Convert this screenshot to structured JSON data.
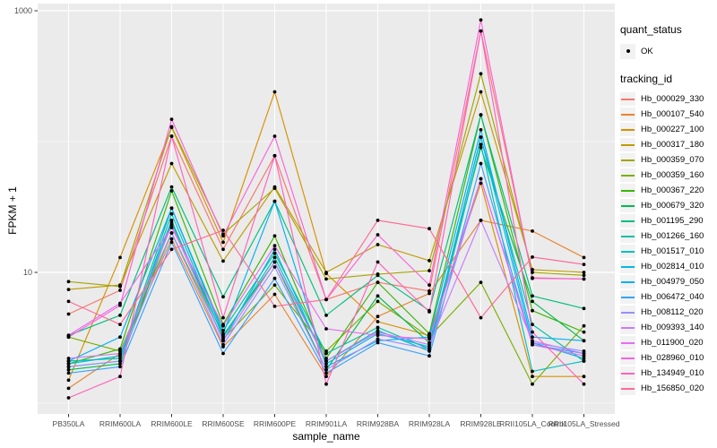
{
  "chart_data": {
    "type": "line",
    "title": "",
    "xlabel": "sample_name",
    "ylabel": "FPKM + 1",
    "y_scale": "log10",
    "y_axis_tick_labels": [
      {
        "value": 10,
        "label": "10"
      },
      {
        "value": 1000,
        "label": "1000"
      }
    ],
    "y_major_gridlines": [
      10,
      1000
    ],
    "y_minor_gridlines": [
      1,
      100
    ],
    "ylim": [
      0.8,
      1100
    ],
    "grid": true,
    "legend_position": "right",
    "panel_background": "#ebebeb",
    "gridline_color": "#ffffff",
    "axis_text_color": "#4d4d4d",
    "tick_mark_color": "#333333",
    "point_color": "#000000",
    "categories": [
      "PB350LA",
      "RRIM600LA",
      "RRIM600LE",
      "RRIM600SE",
      "RRIM600PE",
      "RRIM901LA",
      "RRIM928BA",
      "RRIM928LA",
      "RRIM928LE",
      "RRII105LA_Control",
      "RRII105LA_Stressed"
    ],
    "series": [
      {
        "name": "Hb_000029_330",
        "color": "#F8766D",
        "values": [
          4.8,
          7.3,
          110,
          15,
          78,
          6.2,
          8.4,
          7.2,
          700,
          9.1,
          8.9
        ]
      },
      {
        "name": "Hb_000107_540",
        "color": "#EA8331",
        "values": [
          1.3,
          2.4,
          18,
          2.7,
          6.8,
          1.6,
          4.6,
          6.9,
          25,
          20.7,
          13
        ]
      },
      {
        "name": "Hb_000227_100",
        "color": "#D89000",
        "values": [
          1.5,
          13,
          128,
          17,
          240,
          9.8,
          4.2,
          3.3,
          48,
          1.6,
          1.6
        ]
      },
      {
        "name": "Hb_000317_180",
        "color": "#C09B00",
        "values": [
          7.4,
          8.0,
          68,
          12.2,
          45,
          10,
          16.3,
          12.3,
          240,
          10.5,
          10
        ]
      },
      {
        "name": "Hb_000359_070",
        "color": "#A3A500",
        "values": [
          8.5,
          7.8,
          130,
          19.6,
          44,
          8.9,
          9.7,
          10.3,
          330,
          10,
          9.5
        ]
      },
      {
        "name": "Hb_000359_160",
        "color": "#7CAE00",
        "values": [
          3.2,
          2.5,
          20,
          3.1,
          8.0,
          2.5,
          6.0,
          3.2,
          8.4,
          1.4,
          3.9
        ]
      },
      {
        "name": "Hb_000367_220",
        "color": "#39B600",
        "values": [
          2.0,
          2.6,
          42,
          4.0,
          19,
          2.2,
          8.4,
          3.4,
          160,
          5.1,
          3.5
        ]
      },
      {
        "name": "Hb_000679_320",
        "color": "#00BB4E",
        "values": [
          1.8,
          2.0,
          24,
          3.3,
          12,
          1.8,
          6.6,
          2.9,
          90,
          6.0,
          3.0
        ]
      },
      {
        "name": "Hb_001195_290",
        "color": "#00BF7D",
        "values": [
          3.3,
          4.7,
          45,
          6.5,
          35,
          4.7,
          9.5,
          5.1,
          160,
          6.6,
          5.3
        ]
      },
      {
        "name": "Hb_001266_160",
        "color": "#00C1A3",
        "values": [
          2.1,
          2.2,
          31,
          3.6,
          14,
          2.4,
          3.8,
          2.6,
          108,
          4.0,
          2.1
        ]
      },
      {
        "name": "Hb_001517_010",
        "color": "#00BFC4",
        "values": [
          1.9,
          2.1,
          28,
          3.2,
          13,
          2.1,
          3.6,
          2.5,
          95,
          1.75,
          2.1
        ]
      },
      {
        "name": "Hb_002814_010",
        "color": "#00BAE0",
        "values": [
          2.0,
          2.3,
          25,
          3.0,
          15,
          2.0,
          3.4,
          2.7,
          108,
          2.9,
          2.2
        ]
      },
      {
        "name": "Hb_004979_050",
        "color": "#00B0F6",
        "values": [
          2.1,
          3.2,
          31,
          3.4,
          35,
          1.9,
          3.0,
          3.2,
          123,
          3.2,
          3.0
        ]
      },
      {
        "name": "Hb_006472_040",
        "color": "#35A2FF",
        "values": [
          1.7,
          1.9,
          17,
          2.4,
          9.0,
          1.7,
          2.9,
          2.3,
          68,
          2.8,
          2.4
        ]
      },
      {
        "name": "Hb_008112_020",
        "color": "#9590FF",
        "values": [
          1.9,
          2.1,
          20,
          2.8,
          11,
          1.8,
          3.1,
          2.6,
          52,
          2.9,
          2.5
        ]
      },
      {
        "name": "Hb_009393_140",
        "color": "#C77CFF",
        "values": [
          2.2,
          2.4,
          23,
          3.0,
          12,
          2.1,
          3.5,
          2.8,
          25,
          3.0,
          2.4
        ]
      },
      {
        "name": "Hb_011900_020",
        "color": "#E76BF3",
        "values": [
          3.3,
          5.8,
          22,
          3.9,
          16,
          3.7,
          3.3,
          3.1,
          52,
          2.8,
          2.3
        ]
      },
      {
        "name": "Hb_028960_010",
        "color": "#FA62DB",
        "values": [
          3.2,
          5.6,
          148,
          19,
          110,
          6.2,
          19.4,
          8.0,
          850,
          9.0,
          8.9
        ]
      },
      {
        "name": "Hb_134949_010",
        "color": "#FF62BC",
        "values": [
          1.1,
          1.6,
          110,
          4.5,
          78,
          1.4,
          12,
          5.0,
          700,
          3.5,
          1.4
        ]
      },
      {
        "name": "Hb_156850_020",
        "color": "#FF6A98",
        "values": [
          6.0,
          4.0,
          15,
          21,
          5.5,
          6.2,
          25,
          21.6,
          4.5,
          13.1,
          11.5
        ]
      }
    ]
  },
  "legend": {
    "quant_status": {
      "title": "quant_status",
      "items": [
        "OK"
      ]
    },
    "tracking_id": {
      "title": "tracking_id"
    }
  },
  "axes": {
    "x_title": "sample_name",
    "y_title": "FPKM + 1"
  }
}
